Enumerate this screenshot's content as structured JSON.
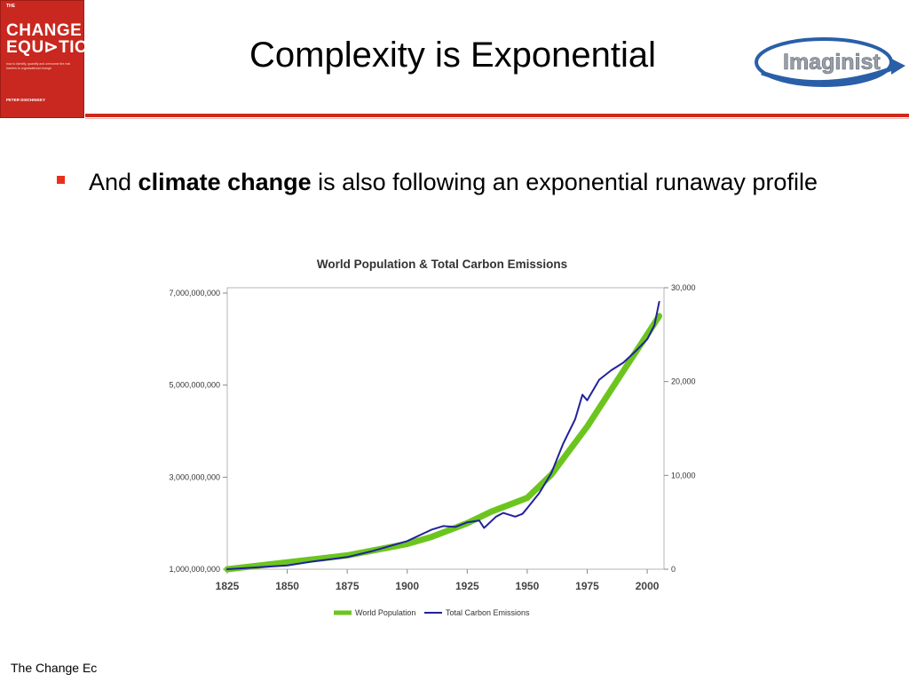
{
  "book": {
    "kicker": "THE",
    "title_line1": "CHANGE",
    "title_line2": "EQU⊳TION",
    "subtitle": "how to identify, quantify and overcome the real barriers to organisational change",
    "author": "PETER DISCHINSKY",
    "color": "#c8281f"
  },
  "slide": {
    "title": "Complexity is Exponential",
    "bullet": {
      "prefix": "And ",
      "bold": "climate change",
      "suffix": " is also following an exponential runaway profile"
    },
    "footer": "The Change Ec",
    "accent_color": "#cc2a1c"
  },
  "logo": {
    "text": "Imaginist",
    "icon": "swoosh-arrow-logo"
  },
  "chart_data": {
    "type": "line",
    "title": "World Population & Total Carbon Emissions",
    "xlabel": "",
    "ylabel": "",
    "x_ticks": [
      "1825",
      "1850",
      "1875",
      "1900",
      "1925",
      "1950",
      "1975",
      "2000"
    ],
    "xlim": [
      1825,
      2007
    ],
    "y_left": {
      "ticks": [
        "1,000,000,000",
        "3,000,000,000",
        "5,000,000,000",
        "7,000,000,000"
      ],
      "range": [
        1000000000,
        7000000000
      ]
    },
    "y_right": {
      "ticks": [
        "0",
        "10,000",
        "20,000",
        "30,000"
      ],
      "range": [
        0,
        30000
      ]
    },
    "grid": false,
    "legend_position": "bottom",
    "series": [
      {
        "name": "World Population",
        "axis": "left",
        "color": "#6cc51f",
        "x": [
          1825,
          1850,
          1875,
          1900,
          1910,
          1925,
          1935,
          1950,
          1960,
          1975,
          1990,
          2000,
          2005
        ],
        "values": [
          1000000000,
          1150000000,
          1300000000,
          1550000000,
          1700000000,
          2000000000,
          2250000000,
          2550000000,
          3050000000,
          4100000000,
          5300000000,
          6100000000,
          6500000000
        ]
      },
      {
        "name": "Total Carbon Emissions",
        "axis": "right",
        "color": "#22219a",
        "x": [
          1825,
          1850,
          1860,
          1875,
          1885,
          1900,
          1910,
          1915,
          1920,
          1925,
          1930,
          1932,
          1937,
          1940,
          1945,
          1948,
          1950,
          1955,
          1960,
          1965,
          1970,
          1973,
          1975,
          1980,
          1985,
          1990,
          1995,
          2000,
          2003,
          2005
        ],
        "values": [
          0,
          400,
          800,
          1300,
          1900,
          3000,
          4200,
          4600,
          4500,
          5000,
          5200,
          4400,
          5600,
          6000,
          5600,
          5900,
          6500,
          8100,
          10200,
          13400,
          16000,
          18600,
          18000,
          20200,
          21200,
          22000,
          23200,
          24500,
          26000,
          28500
        ]
      }
    ]
  }
}
